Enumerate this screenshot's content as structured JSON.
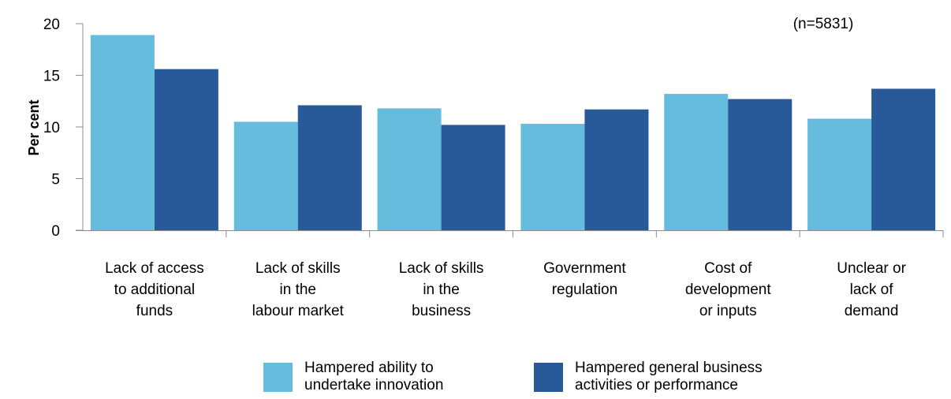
{
  "chart_data": {
    "type": "bar",
    "title": "",
    "xlabel": "",
    "ylabel": "Per cent",
    "annotation": "(n=5831)",
    "ylim": [
      0,
      20
    ],
    "yticks": [
      0,
      5,
      10,
      15,
      20
    ],
    "grid": false,
    "legend_position": "bottom",
    "categories": [
      [
        "Lack of access",
        "to additional",
        "funds"
      ],
      [
        "Lack of skills",
        "in the",
        "labour market"
      ],
      [
        "Lack of skills",
        "in the",
        "business"
      ],
      [
        "Government",
        "regulation"
      ],
      [
        "Cost of",
        "development",
        "or inputs"
      ],
      [
        "Unclear or",
        "lack of",
        "demand"
      ]
    ],
    "series": [
      {
        "name": "Hampered ability to\nundertake innovation",
        "color": "#66BCDC",
        "values": [
          18.9,
          10.5,
          11.8,
          10.3,
          13.2,
          10.8
        ]
      },
      {
        "name": "Hampered general business\nactivities or performance",
        "color": "#285A9A",
        "values": [
          15.6,
          12.1,
          10.2,
          11.7,
          12.7,
          13.7
        ]
      }
    ]
  }
}
